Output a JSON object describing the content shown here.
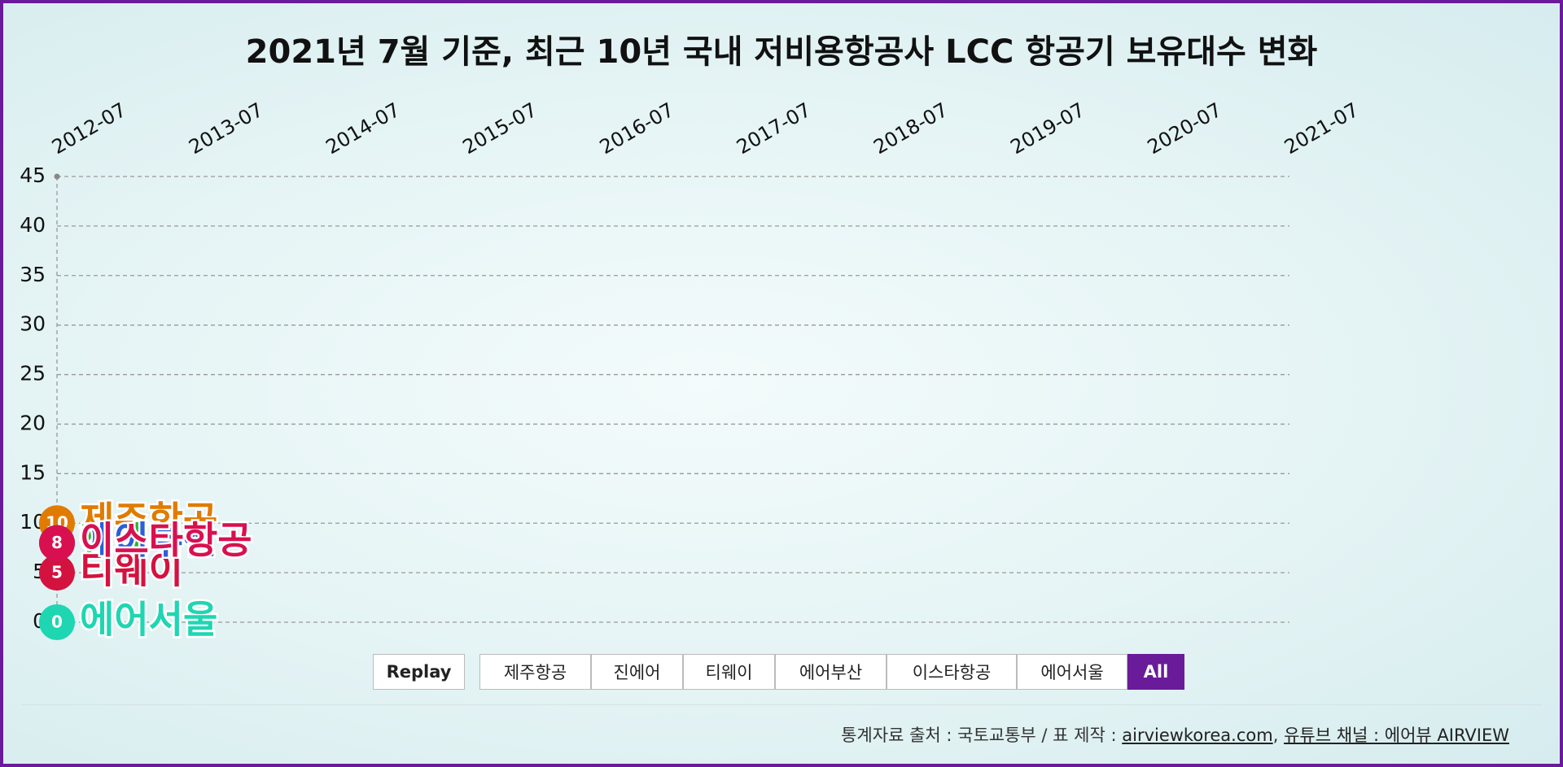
{
  "chart_data": {
    "type": "line",
    "title": "2021년 7월 기준, 최근 10년 국내 저비용항공사 LCC 항공기 보유대수 변화",
    "x": [
      "2012-07"
    ],
    "xticks": [
      "2012-07",
      "2013-07",
      "2014-07",
      "2015-07",
      "2016-07",
      "2017-07",
      "2018-07",
      "2019-07",
      "2020-07",
      "2021-07"
    ],
    "ylim": [
      0,
      45
    ],
    "yticks": [
      0,
      5,
      10,
      15,
      20,
      25,
      30,
      35,
      40,
      45
    ],
    "grid": true,
    "series": [
      {
        "name": "제주항공",
        "color": "#e07b00",
        "values": [
          10
        ]
      },
      {
        "name": "진에어",
        "color": "#2bb52b",
        "values": [
          8
        ]
      },
      {
        "name": "티웨이",
        "color": "#d4123f",
        "values": [
          5
        ]
      },
      {
        "name": "에어부산",
        "color": "#2b5fd9",
        "values": [
          8
        ]
      },
      {
        "name": "이스타항공",
        "color": "#d9104f",
        "values": [
          8
        ]
      },
      {
        "name": "에어서울",
        "color": "#1ed6b2",
        "values": [
          0
        ]
      }
    ]
  },
  "controls": {
    "replay": "Replay",
    "all": "All"
  },
  "footer": {
    "source": "통계자료 출처 : 국토교통부 / 표 제작 :",
    "site": "airviewkorea.com",
    "sep": ",",
    "channel": "유튜브 채널 : 에어뷰 AIRVIEW"
  }
}
